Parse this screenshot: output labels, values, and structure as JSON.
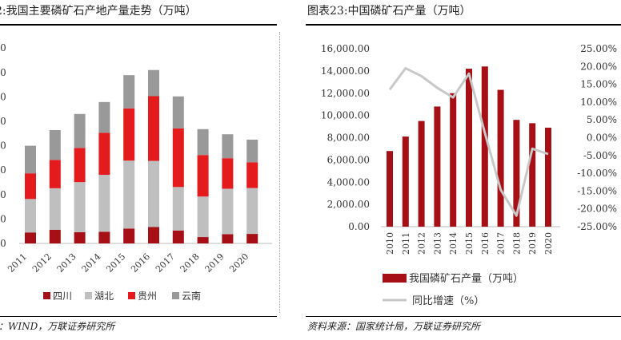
{
  "left_panel": {
    "title": "2:我国主要磷矿石产地产量走势（万吨）",
    "source": "源：WIND，万联证券研究所"
  },
  "right_panel": {
    "title": "图表23:中国磷矿石产量（万吨）",
    "source": "资料来源：国家统计局，万联证券研究所"
  },
  "colors": {
    "sichuan": "#a50f15",
    "hubei": "#bfbfbf",
    "guizhou": "#e41a1c",
    "yunnan": "#999999",
    "production": "#a50f15",
    "growth": "#c8c8c8"
  },
  "chart_data": [
    {
      "type": "bar",
      "stacked": true,
      "categories": [
        "2011",
        "2012",
        "2013",
        "2014",
        "2015",
        "2016",
        "2017",
        "2018",
        "2019",
        "2020"
      ],
      "series": [
        {
          "name": "四川",
          "values": [
            450,
            560,
            460,
            480,
            610,
            670,
            530,
            260,
            380,
            390
          ]
        },
        {
          "name": "湖北",
          "values": [
            1370,
            1700,
            2050,
            2330,
            2780,
            2710,
            1780,
            1660,
            1860,
            1880
          ]
        },
        {
          "name": "贵州",
          "values": [
            1050,
            1160,
            1400,
            1720,
            2140,
            2650,
            2400,
            1700,
            1250,
            1050
          ]
        },
        {
          "name": "云南",
          "values": [
            1130,
            1220,
            1390,
            1260,
            1360,
            1070,
            1310,
            1060,
            980,
            930
          ]
        }
      ],
      "legend_position": "bottom",
      "grid": false
    },
    {
      "type": "bar",
      "categories": [
        "2010",
        "2011",
        "2012",
        "2013",
        "2014",
        "2015",
        "2016",
        "2017",
        "2018",
        "2019",
        "2020"
      ],
      "series": [
        {
          "name": "我国磷矿石产量（万吨）",
          "type": "bar",
          "axis": "left",
          "values": [
            6800,
            8100,
            9500,
            10800,
            12000,
            14200,
            14400,
            12300,
            9600,
            9300,
            8900
          ]
        },
        {
          "name": "同比增速（%）",
          "type": "line",
          "axis": "right",
          "values": [
            13.5,
            19.5,
            17.3,
            14.0,
            11.3,
            18.0,
            1.4,
            -14.6,
            -21.9,
            -3.1,
            -4.6
          ]
        }
      ],
      "ylim_left": [
        0,
        16000
      ],
      "ylim_right": [
        -25,
        25
      ],
      "yticks_left": [
        "0.00",
        "2,000.00",
        "4,000.00",
        "6,000.00",
        "8,000.00",
        "10,000.00",
        "12,000.00",
        "14,000.00",
        "16,000.00"
      ],
      "yticks_right": [
        "-25.00%",
        "-20.00%",
        "-15.00%",
        "-10.00%",
        "-5.00%",
        "0.00%",
        "5.00%",
        "10.00%",
        "15.00%",
        "20.00%",
        "25.00%"
      ],
      "legend_position": "bottom",
      "grid": false
    }
  ]
}
